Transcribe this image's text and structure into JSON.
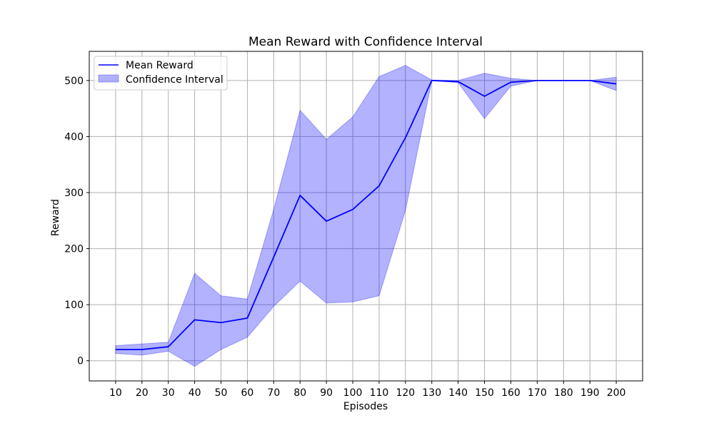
{
  "chart_data": {
    "type": "line",
    "title": "Mean Reward with Confidence Interval",
    "xlabel": "Episodes",
    "ylabel": "Reward",
    "x": [
      10,
      20,
      30,
      40,
      50,
      60,
      70,
      80,
      90,
      100,
      110,
      120,
      130,
      140,
      150,
      160,
      170,
      180,
      190,
      200
    ],
    "xlim": [
      0,
      210
    ],
    "ylim": [
      -36,
      552
    ],
    "yticks": [
      0,
      100,
      200,
      300,
      400,
      500
    ],
    "grid": true,
    "legend_position": "upper-left",
    "series": [
      {
        "name": "Mean Reward",
        "kind": "line",
        "color": "#0000ff",
        "values": [
          20,
          20,
          25,
          73,
          68,
          76,
          185,
          295,
          249,
          270,
          312,
          398,
          500,
          498,
          472,
          497,
          500,
          500,
          500,
          494
        ]
      },
      {
        "name": "Confidence Interval",
        "kind": "band",
        "color": "#0000ff",
        "lower": [
          13,
          10,
          17,
          -10,
          20,
          42,
          97,
          142,
          103,
          105,
          116,
          268,
          500,
          496,
          432,
          490,
          500,
          500,
          500,
          482
        ],
        "upper": [
          27,
          30,
          33,
          156,
          116,
          110,
          270,
          447,
          395,
          435,
          507,
          527,
          501,
          500,
          513,
          504,
          500,
          500,
          500,
          506
        ]
      }
    ]
  }
}
